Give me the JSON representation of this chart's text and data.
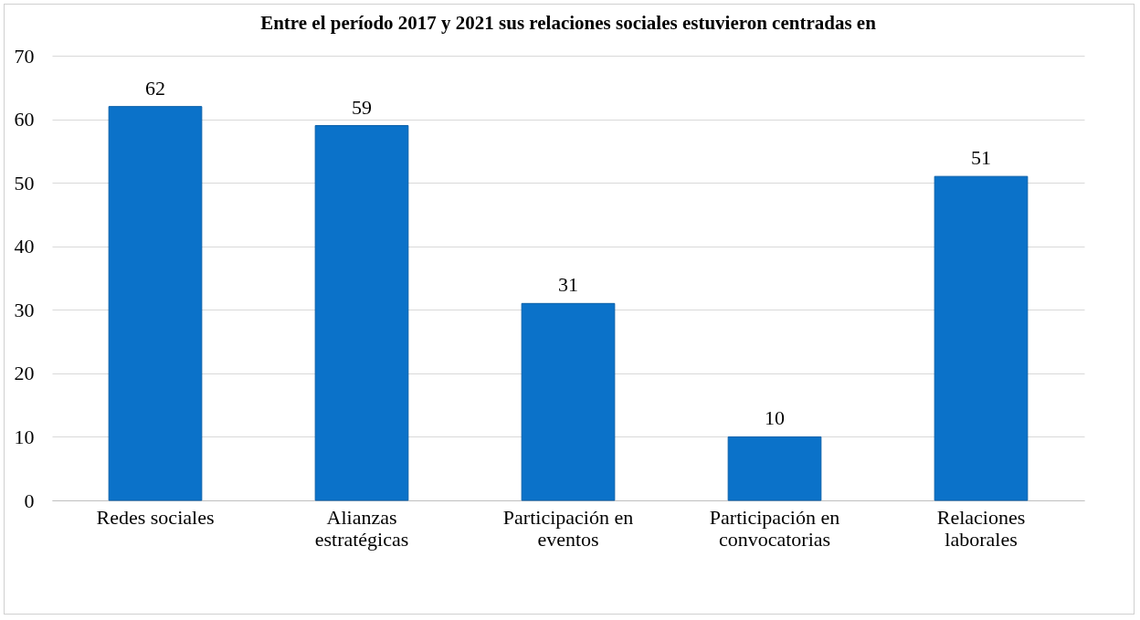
{
  "chart_data": {
    "type": "bar",
    "title": "Entre el período 2017 y 2021 sus relaciones sociales estuvieron centradas en",
    "categories": [
      "Redes sociales",
      "Alianzas estratégicas",
      "Participación en eventos",
      "Participación en convocatorias",
      "Relaciones laborales"
    ],
    "values": [
      62,
      59,
      31,
      10,
      51
    ],
    "color": "#0b72c9",
    "ylim": [
      0,
      70
    ],
    "yticks": [
      0,
      10,
      20,
      30,
      40,
      50,
      60,
      70
    ],
    "grid": "y",
    "data_labels": true
  }
}
